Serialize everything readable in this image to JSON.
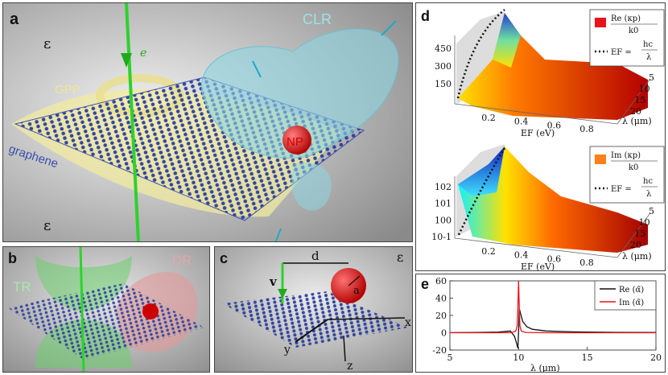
{
  "panel_a": {
    "label": "a",
    "eps_top": "ε",
    "eps_bottom": "ε",
    "gpp": "GPP",
    "graphene": "graphene",
    "clr": "CLR",
    "np": "NP",
    "electron": "e"
  },
  "panel_b": {
    "label": "b",
    "tr": "TR",
    "dr": "DR"
  },
  "panel_c": {
    "label": "c",
    "v": "v",
    "d": "d",
    "a": "a",
    "eps": "ε",
    "x": "x",
    "y": "y",
    "z": "z"
  },
  "panel_d": {
    "label": "d",
    "top_legend_re": "Re (κp)",
    "top_legend_denom": "k0",
    "top_legend_ef": "EF =",
    "top_legend_hc": "hc",
    "top_legend_lambda": "λ",
    "bottom_legend_im": "Im (κp)",
    "bottom_legend_denom": "k0",
    "bottom_legend_ef": "EF =",
    "bottom_legend_hc": "hc",
    "bottom_legend_lambda": "λ",
    "colors": {
      "re": "#e8141b",
      "im": "#ff7f1a"
    }
  },
  "panel_e": {
    "label": "e"
  },
  "chart_data": [
    {
      "type": "surface",
      "title": "Re(κp)/k0",
      "xlabel": "EF (eV)",
      "ylabel": "λ (μm)",
      "zlabel": "",
      "x_ticks": [
        "0.2",
        "0.4",
        "0.6",
        "0.8"
      ],
      "y_ticks": [
        "5",
        "10",
        "15",
        "20"
      ],
      "z_ticks": [
        "150",
        "300",
        "450"
      ],
      "series": [
        {
          "name": "Re(κp)/k0"
        },
        {
          "name": "EF = hc/λ"
        }
      ]
    },
    {
      "type": "surface",
      "title": "Im(κp)/k0",
      "xlabel": "EF (eV)",
      "ylabel": "λ (μm)",
      "x_ticks": [
        "0.2",
        "0.4",
        "0.6",
        "0.8"
      ],
      "y_ticks": [
        "5",
        "10",
        "15",
        "20"
      ],
      "z_ticks": [
        "10-1",
        "100",
        "101",
        "102"
      ],
      "z_scale": "log",
      "series": [
        {
          "name": "Im(κp)/k0"
        },
        {
          "name": "EF = hc/λ"
        }
      ]
    },
    {
      "type": "line",
      "xlabel": "λ (μm)",
      "ylabel": "",
      "xlim": [
        5,
        20
      ],
      "ylim": [
        -20,
        60
      ],
      "x_ticks": [
        5,
        10,
        15,
        20
      ],
      "y_ticks": [
        -20,
        0,
        20,
        40,
        60
      ],
      "legend": "top-right",
      "series": [
        {
          "name": "Re (α̃)",
          "color": "#111111",
          "x": [
            5,
            7,
            8.5,
            9.4,
            9.7,
            9.85,
            9.95,
            10.0,
            10.05,
            10.15,
            10.3,
            10.6,
            11,
            12,
            14,
            17,
            20
          ],
          "y": [
            0.1,
            0.3,
            0.8,
            2,
            -4,
            -12,
            -18,
            0,
            28,
            22,
            13,
            7,
            4,
            2,
            1,
            0.5,
            0.3
          ]
        },
        {
          "name": "Im (α̃)",
          "color": "#e8141b",
          "x": [
            5,
            8,
            9.5,
            9.8,
            9.9,
            9.95,
            10.0,
            10.05,
            10.1,
            10.2,
            10.5,
            12,
            16,
            20
          ],
          "y": [
            0,
            0,
            0.2,
            2,
            8,
            30,
            60,
            30,
            8,
            2,
            0.4,
            0,
            0,
            0
          ]
        }
      ]
    }
  ]
}
